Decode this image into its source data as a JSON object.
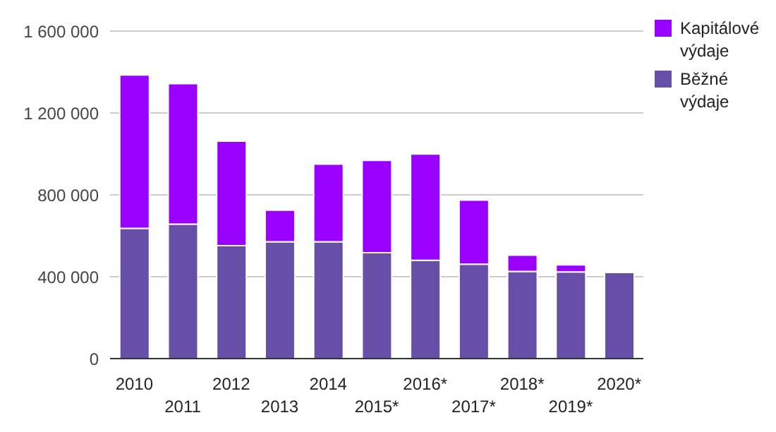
{
  "chart_data": {
    "type": "bar",
    "stacked": true,
    "categories": [
      "2010",
      "2011",
      "2012",
      "2013",
      "2014",
      "2015*",
      "2016*",
      "2017*",
      "2018*",
      "2019*",
      "2020*"
    ],
    "series": [
      {
        "name": "Běžné výdaje",
        "color": "#674ea7",
        "values": [
          636000,
          657000,
          552000,
          571000,
          571000,
          517000,
          480000,
          461000,
          426000,
          423000,
          421000
        ]
      },
      {
        "name": "Kapitálové výdaje",
        "color": "#9900ff",
        "values": [
          749000,
          686000,
          510000,
          154000,
          379000,
          451000,
          519000,
          313000,
          79000,
          35000,
          7000
        ]
      }
    ],
    "ylim": [
      0,
      1600000
    ],
    "yticks": [
      {
        "value": 0,
        "label": "0"
      },
      {
        "value": 400000,
        "label": "400 000"
      },
      {
        "value": 800000,
        "label": "800 000"
      },
      {
        "value": 1200000,
        "label": "1 200 000"
      },
      {
        "value": 1600000,
        "label": "1 600 000"
      }
    ],
    "grid": "y",
    "legend": "top right"
  }
}
